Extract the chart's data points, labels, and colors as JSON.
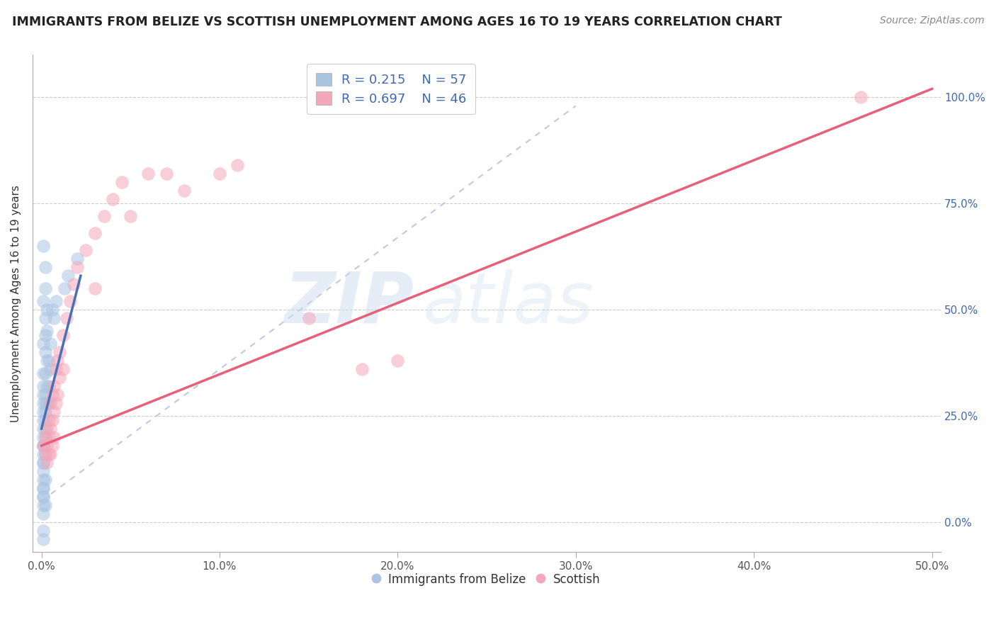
{
  "title": "IMMIGRANTS FROM BELIZE VS SCOTTISH UNEMPLOYMENT AMONG AGES 16 TO 19 YEARS CORRELATION CHART",
  "source": "Source: ZipAtlas.com",
  "ylabel": "Unemployment Among Ages 16 to 19 years",
  "xlabel": "",
  "xlim": [
    -0.005,
    0.505
  ],
  "ylim": [
    -0.07,
    1.1
  ],
  "xtick_vals": [
    0.0,
    0.1,
    0.2,
    0.3,
    0.4,
    0.5
  ],
  "xtick_labels": [
    "0.0%",
    "10.0%",
    "20.0%",
    "30.0%",
    "40.0%",
    "50.0%"
  ],
  "ytick_vals": [
    0.0,
    0.25,
    0.5,
    0.75,
    1.0
  ],
  "ytick_labels_right": [
    "0.0%",
    "25.0%",
    "50.0%",
    "75.0%",
    "100.0%"
  ],
  "blue_R": 0.215,
  "blue_N": 57,
  "pink_R": 0.697,
  "pink_N": 46,
  "blue_color": "#aac5e2",
  "pink_color": "#f4a7b9",
  "blue_line_color": "#4a6fb5",
  "pink_line_color": "#e85f7a",
  "grey_dash_color": "#b0bcd4",
  "legend_label_blue": "Immigrants from Belize",
  "legend_label_pink": "Scottish",
  "watermark_zip": "ZIP",
  "watermark_atlas": "atlas",
  "background_color": "#ffffff",
  "blue_scatter": [
    [
      0.001,
      0.65
    ],
    [
      0.002,
      0.6
    ],
    [
      0.002,
      0.55
    ],
    [
      0.001,
      0.52
    ],
    [
      0.002,
      0.48
    ],
    [
      0.002,
      0.44
    ],
    [
      0.001,
      0.42
    ],
    [
      0.003,
      0.5
    ],
    [
      0.003,
      0.45
    ],
    [
      0.002,
      0.4
    ],
    [
      0.003,
      0.38
    ],
    [
      0.001,
      0.35
    ],
    [
      0.002,
      0.35
    ],
    [
      0.001,
      0.32
    ],
    [
      0.002,
      0.3
    ],
    [
      0.001,
      0.3
    ],
    [
      0.002,
      0.28
    ],
    [
      0.001,
      0.28
    ],
    [
      0.002,
      0.26
    ],
    [
      0.001,
      0.26
    ],
    [
      0.002,
      0.24
    ],
    [
      0.001,
      0.24
    ],
    [
      0.001,
      0.22
    ],
    [
      0.002,
      0.22
    ],
    [
      0.001,
      0.2
    ],
    [
      0.002,
      0.2
    ],
    [
      0.001,
      0.18
    ],
    [
      0.001,
      0.18
    ],
    [
      0.001,
      0.16
    ],
    [
      0.002,
      0.16
    ],
    [
      0.001,
      0.14
    ],
    [
      0.001,
      0.14
    ],
    [
      0.001,
      0.12
    ],
    [
      0.001,
      0.1
    ],
    [
      0.002,
      0.1
    ],
    [
      0.001,
      0.08
    ],
    [
      0.001,
      0.08
    ],
    [
      0.001,
      0.06
    ],
    [
      0.001,
      0.06
    ],
    [
      0.001,
      0.04
    ],
    [
      0.002,
      0.04
    ],
    [
      0.001,
      0.02
    ],
    [
      0.001,
      -0.02
    ],
    [
      0.001,
      -0.04
    ],
    [
      0.003,
      0.32
    ],
    [
      0.004,
      0.38
    ],
    [
      0.004,
      0.32
    ],
    [
      0.003,
      0.28
    ],
    [
      0.004,
      0.28
    ],
    [
      0.005,
      0.42
    ],
    [
      0.005,
      0.36
    ],
    [
      0.006,
      0.5
    ],
    [
      0.007,
      0.48
    ],
    [
      0.008,
      0.52
    ],
    [
      0.013,
      0.55
    ],
    [
      0.015,
      0.58
    ],
    [
      0.02,
      0.62
    ]
  ],
  "pink_scatter": [
    [
      0.001,
      0.18
    ],
    [
      0.002,
      0.2
    ],
    [
      0.002,
      0.16
    ],
    [
      0.003,
      0.22
    ],
    [
      0.003,
      0.18
    ],
    [
      0.003,
      0.14
    ],
    [
      0.004,
      0.24
    ],
    [
      0.004,
      0.2
    ],
    [
      0.004,
      0.16
    ],
    [
      0.005,
      0.28
    ],
    [
      0.005,
      0.22
    ],
    [
      0.005,
      0.16
    ],
    [
      0.006,
      0.3
    ],
    [
      0.006,
      0.24
    ],
    [
      0.006,
      0.18
    ],
    [
      0.007,
      0.32
    ],
    [
      0.007,
      0.26
    ],
    [
      0.007,
      0.2
    ],
    [
      0.008,
      0.36
    ],
    [
      0.008,
      0.28
    ],
    [
      0.009,
      0.38
    ],
    [
      0.009,
      0.3
    ],
    [
      0.01,
      0.4
    ],
    [
      0.01,
      0.34
    ],
    [
      0.012,
      0.44
    ],
    [
      0.012,
      0.36
    ],
    [
      0.014,
      0.48
    ],
    [
      0.016,
      0.52
    ],
    [
      0.018,
      0.56
    ],
    [
      0.02,
      0.6
    ],
    [
      0.025,
      0.64
    ],
    [
      0.03,
      0.68
    ],
    [
      0.03,
      0.55
    ],
    [
      0.035,
      0.72
    ],
    [
      0.04,
      0.76
    ],
    [
      0.045,
      0.8
    ],
    [
      0.05,
      0.72
    ],
    [
      0.06,
      0.82
    ],
    [
      0.07,
      0.82
    ],
    [
      0.08,
      0.78
    ],
    [
      0.1,
      0.82
    ],
    [
      0.11,
      0.84
    ],
    [
      0.15,
      0.48
    ],
    [
      0.18,
      0.36
    ],
    [
      0.2,
      0.38
    ],
    [
      0.46,
      1.0
    ]
  ],
  "blue_line": [
    [
      0.0,
      0.22
    ],
    [
      0.022,
      0.58
    ]
  ],
  "grey_dash_line": [
    [
      0.0,
      0.05
    ],
    [
      0.3,
      0.98
    ]
  ],
  "pink_line": [
    [
      0.0,
      0.18
    ],
    [
      0.5,
      1.02
    ]
  ]
}
